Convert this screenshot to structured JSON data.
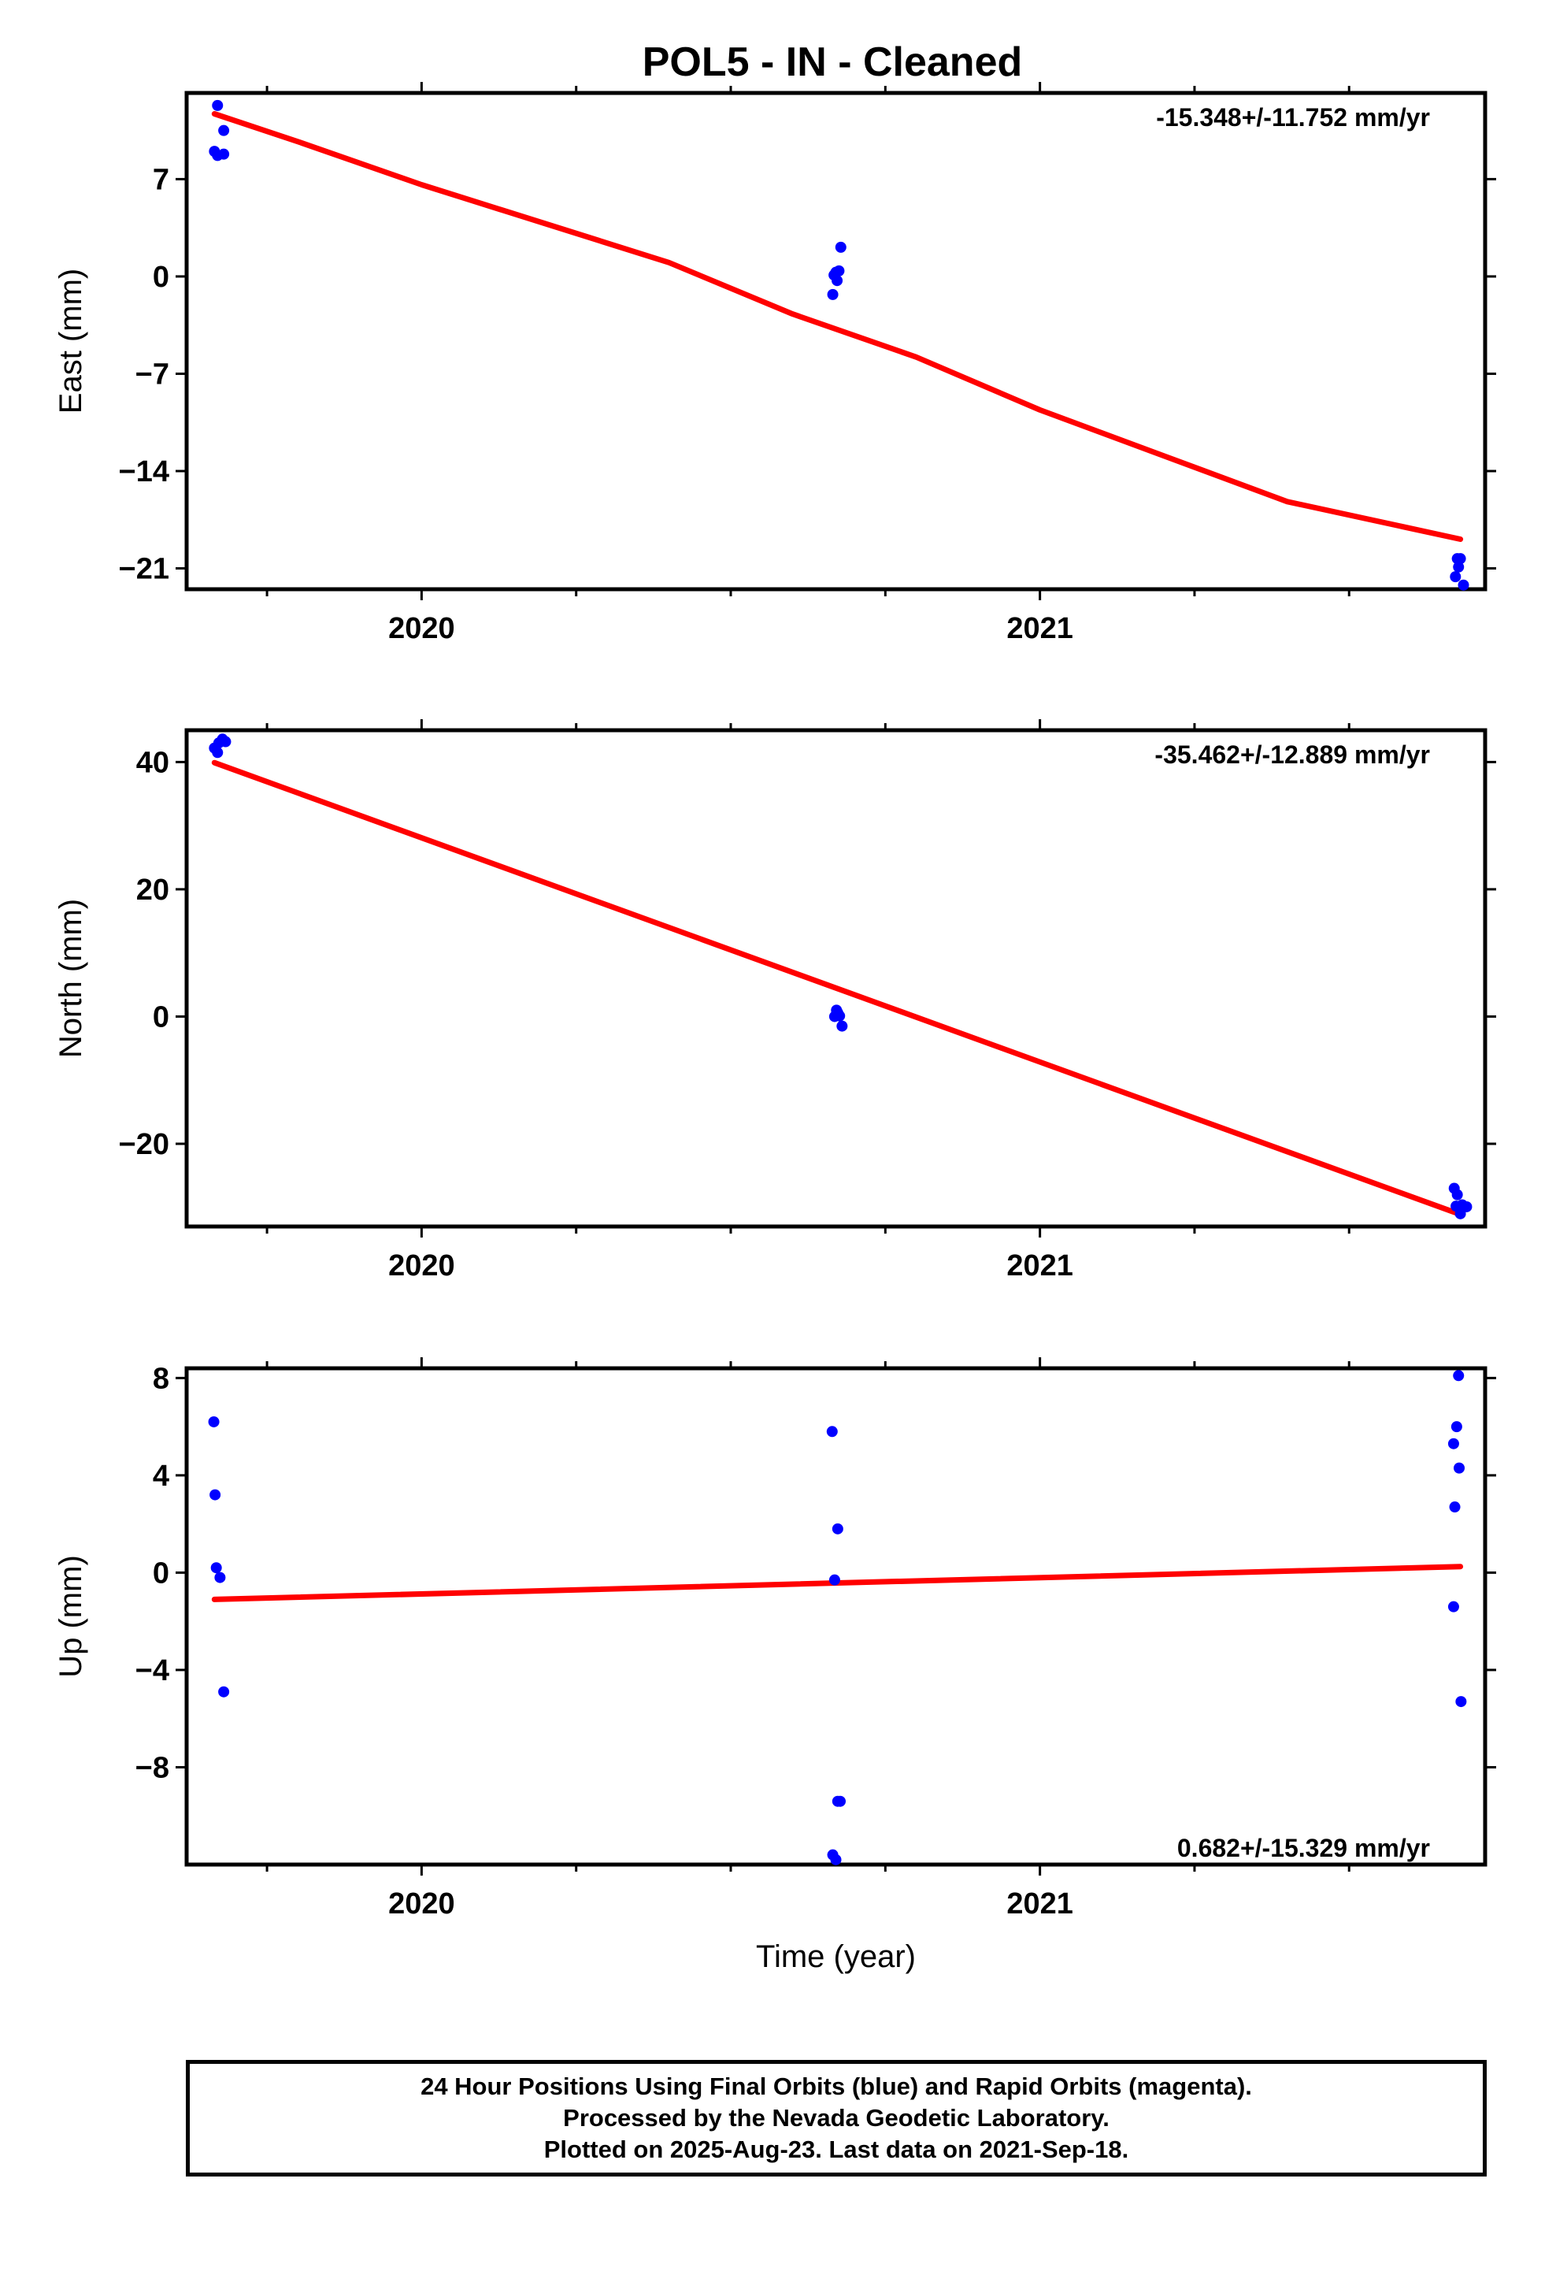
{
  "title": "POL5  - IN - Cleaned",
  "colors": {
    "data": "#0000ff",
    "fit": "#ff0000",
    "frame": "#000000"
  },
  "chart_data": [
    {
      "type": "scatter",
      "ylabel": "East (mm)",
      "xlabel": "",
      "xlim": [
        2019.62,
        2021.72
      ],
      "ylim": [
        -22.5,
        13.2
      ],
      "yticks": [
        7,
        0,
        -7,
        -14,
        -21
      ],
      "ytick_labels": [
        "7",
        "0",
        "−7",
        "−14",
        "−21"
      ],
      "xtick_labels": [
        "2020",
        "2021"
      ],
      "xtick_values": [
        2020,
        2021
      ],
      "rate_label": "-15.348+/-11.752 mm/yr",
      "points": [
        [
          2019.67,
          12.3
        ],
        [
          2019.68,
          10.5
        ],
        [
          2019.665,
          9.0
        ],
        [
          2019.67,
          8.7
        ],
        [
          2019.68,
          8.8
        ],
        [
          2020.665,
          -1.3
        ],
        [
          2020.667,
          0.1
        ],
        [
          2020.67,
          0.3
        ],
        [
          2020.672,
          -0.3
        ],
        [
          2020.675,
          0.4
        ],
        [
          2020.678,
          2.1
        ],
        [
          2021.675,
          -20.3
        ],
        [
          2021.68,
          -20.3
        ],
        [
          2021.677,
          -20.9
        ],
        [
          2021.672,
          -21.6
        ],
        [
          2021.685,
          -22.2
        ]
      ],
      "fit": [
        [
          2019.665,
          11.7
        ],
        [
          2019.8,
          9.7
        ],
        [
          2020.0,
          6.6
        ],
        [
          2020.2,
          3.8
        ],
        [
          2020.4,
          1.0
        ],
        [
          2020.6,
          -2.7
        ],
        [
          2020.8,
          -5.8
        ],
        [
          2021.0,
          -9.6
        ],
        [
          2021.2,
          -12.9
        ],
        [
          2021.4,
          -16.2
        ],
        [
          2021.68,
          -18.9
        ]
      ]
    },
    {
      "type": "scatter",
      "ylabel": "North (mm)",
      "xlabel": "",
      "xlim": [
        2019.62,
        2021.72
      ],
      "ylim": [
        -33,
        45
      ],
      "yticks": [
        40,
        20,
        0,
        -20
      ],
      "ytick_labels": [
        "40",
        "20",
        "0",
        "−20"
      ],
      "xtick_labels": [
        "2020",
        "2021"
      ],
      "xtick_values": [
        2020,
        2021
      ],
      "rate_label": "-35.462+/-12.889 mm/yr",
      "points": [
        [
          2019.665,
          42.2
        ],
        [
          2019.67,
          41.5
        ],
        [
          2019.672,
          43.0
        ],
        [
          2019.678,
          43.6
        ],
        [
          2019.683,
          43.2
        ],
        [
          2020.668,
          0.0
        ],
        [
          2020.671,
          1.0
        ],
        [
          2020.673,
          0.6
        ],
        [
          2020.676,
          0.1
        ],
        [
          2020.68,
          -1.5
        ],
        [
          2021.67,
          -27.0
        ],
        [
          2021.675,
          -28.0
        ],
        [
          2021.673,
          -29.8
        ],
        [
          2021.683,
          -29.6
        ],
        [
          2021.69,
          -29.9
        ],
        [
          2021.68,
          -31.0
        ]
      ],
      "fit": [
        [
          2019.665,
          39.9
        ],
        [
          2021.68,
          -31.1
        ]
      ]
    },
    {
      "type": "scatter",
      "ylabel": "Up (mm)",
      "xlabel": "Time (year)",
      "xlim": [
        2019.62,
        2021.72
      ],
      "ylim": [
        -12,
        8.4
      ],
      "yticks": [
        8,
        4,
        0,
        -4,
        -8
      ],
      "ytick_labels": [
        "8",
        "4",
        "0",
        "−4",
        "−8"
      ],
      "xtick_labels": [
        "2020",
        "2021"
      ],
      "xtick_values": [
        2020,
        2021
      ],
      "rate_label": "0.682+/-15.329 mm/yr",
      "points": [
        [
          2019.664,
          6.2
        ],
        [
          2019.666,
          3.2
        ],
        [
          2019.668,
          0.2
        ],
        [
          2019.674,
          -0.2
        ],
        [
          2019.68,
          -4.9
        ],
        [
          2020.664,
          5.8
        ],
        [
          2020.665,
          -11.6
        ],
        [
          2020.668,
          -0.3
        ],
        [
          2020.67,
          -11.8
        ],
        [
          2020.673,
          1.8
        ],
        [
          2020.673,
          -9.4
        ],
        [
          2020.677,
          -9.4
        ],
        [
          2021.669,
          5.3
        ],
        [
          2021.671,
          2.7
        ],
        [
          2021.669,
          -1.4
        ],
        [
          2021.674,
          6.0
        ],
        [
          2021.677,
          8.1
        ],
        [
          2021.678,
          4.3
        ],
        [
          2021.681,
          -5.3
        ]
      ],
      "fit": [
        [
          2019.665,
          -1.1
        ],
        [
          2021.68,
          0.25
        ]
      ]
    }
  ],
  "footer": {
    "line1": "24 Hour Positions Using Final Orbits (blue) and Rapid Orbits (magenta).",
    "line2": "Processed by the Nevada Geodetic Laboratory.",
    "line3": "Plotted on 2025-Aug-23. Last data on 2021-Sep-18."
  }
}
